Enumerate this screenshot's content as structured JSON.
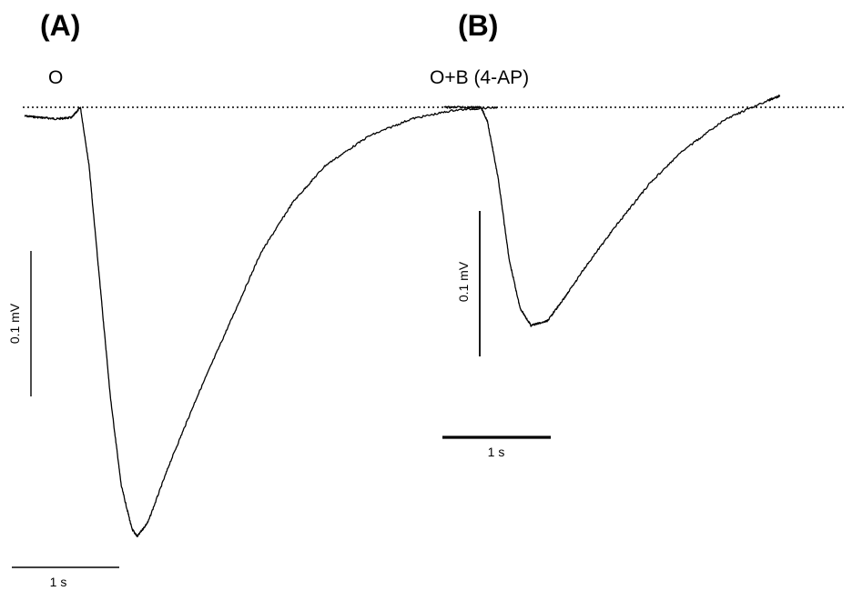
{
  "panels": {
    "a": {
      "letter": "(A)",
      "condition": "O"
    },
    "b": {
      "letter": "(B)",
      "condition": "O+B (4-AP)"
    }
  },
  "scale_bars": {
    "a": {
      "voltage": "0.1 mV",
      "time": "1 s"
    },
    "b": {
      "voltage": "0.1 mV",
      "time": "1 s"
    }
  },
  "colors": {
    "trace": "#000000",
    "baseline": "#000000",
    "background": "#ffffff"
  },
  "chart_data": {
    "type": "line",
    "title": "",
    "xlabel": "",
    "ylabel": "",
    "grid": false,
    "baseline_dotted": true,
    "series": [
      {
        "name": "O",
        "x_unit": "s",
        "y_unit": "mV",
        "x": [
          0.0,
          0.15,
          0.3,
          0.44,
          0.52,
          0.6,
          0.7,
          0.8,
          0.9,
          1.0,
          1.05,
          1.15,
          1.35,
          1.6,
          1.9,
          2.2,
          2.5,
          2.8,
          3.2,
          3.6,
          4.0,
          4.4
        ],
        "y": [
          -0.006,
          -0.007,
          -0.008,
          -0.007,
          0.0,
          -0.04,
          -0.12,
          -0.2,
          -0.26,
          -0.29,
          -0.295,
          -0.285,
          -0.245,
          -0.2,
          -0.15,
          -0.1,
          -0.065,
          -0.04,
          -0.02,
          -0.008,
          -0.002,
          0.0
        ]
      },
      {
        "name": "O+B (4-AP)",
        "x_unit": "s",
        "y_unit": "mV",
        "x": [
          0.0,
          0.2,
          0.34,
          0.4,
          0.5,
          0.6,
          0.7,
          0.8,
          0.95,
          1.1,
          1.3,
          1.6,
          1.9,
          2.2,
          2.6,
          3.0,
          3.1
        ],
        "y": [
          0.0,
          0.0,
          0.0,
          -0.01,
          -0.05,
          -0.105,
          -0.138,
          -0.15,
          -0.147,
          -0.132,
          -0.11,
          -0.08,
          -0.052,
          -0.03,
          -0.008,
          0.005,
          0.008
        ]
      }
    ]
  }
}
